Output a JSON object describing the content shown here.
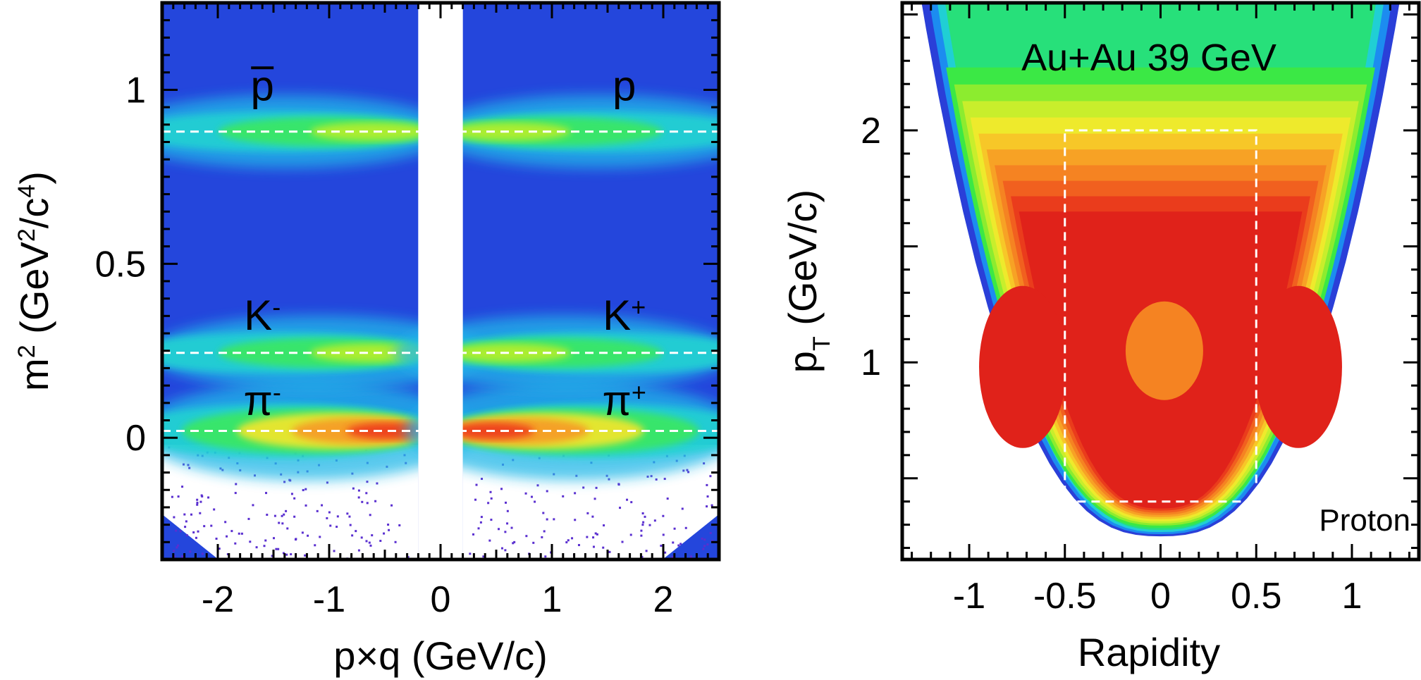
{
  "chart_data": [
    {
      "type": "heatmap",
      "panel": "left",
      "xlabel": "p×q (GeV/c)",
      "ylabel": {
        "main": "m",
        "sup1": "2",
        "mid": " (GeV",
        "sup2": "2",
        "mid2": "/c",
        "sup3": "4",
        "end": ")"
      },
      "xlim": [
        -2.5,
        2.5
      ],
      "ylim": [
        -0.35,
        1.25
      ],
      "x_ticks": [
        {
          "value": -2,
          "label": "-2"
        },
        {
          "value": -1,
          "label": "-1"
        },
        {
          "value": 0,
          "label": "0"
        },
        {
          "value": 1,
          "label": "1"
        },
        {
          "value": 2,
          "label": "2"
        }
      ],
      "y_ticks": [
        {
          "value": 0,
          "label": "0"
        },
        {
          "value": 0.5,
          "label": "0.5"
        },
        {
          "value": 1,
          "label": "1"
        }
      ],
      "reference_lines_m2": [
        0.0195,
        0.244,
        0.88
      ],
      "excluded_band_x": [
        -0.2,
        0.2
      ],
      "species_bands": [
        {
          "name": "pi",
          "m2": 0.0195,
          "peak_x": 0.6,
          "strength": 1.0
        },
        {
          "name": "K",
          "m2": 0.244,
          "peak_x": 0.5,
          "strength": 0.72
        },
        {
          "name": "p",
          "m2": 0.88,
          "peak_x": 0.8,
          "strength": 0.7
        }
      ],
      "annotations": [
        {
          "id": "pbar",
          "base": "p",
          "sup": "",
          "overline": true,
          "x": -1.6,
          "y": 0.97
        },
        {
          "id": "p",
          "base": "p",
          "sup": "",
          "overline": false,
          "x": 1.65,
          "y": 0.97
        },
        {
          "id": "kminus",
          "base": "K",
          "sup": "-",
          "overline": false,
          "x": -1.6,
          "y": 0.31
        },
        {
          "id": "kplus",
          "base": "K",
          "sup": "+",
          "overline": false,
          "x": 1.65,
          "y": 0.31
        },
        {
          "id": "piminus",
          "base": "π",
          "sup": "-",
          "overline": false,
          "x": -1.6,
          "y": 0.065
        },
        {
          "id": "piplus",
          "base": "π",
          "sup": "+",
          "overline": false,
          "x": 1.65,
          "y": 0.065
        }
      ],
      "colormap": [
        "#ffffff",
        "#5a1fd6",
        "#1d3fe0",
        "#1e90f0",
        "#20d2d2",
        "#3be860",
        "#b8ef2a",
        "#f6e62a",
        "#f79a25",
        "#ee3a1d",
        "#c90d0d"
      ]
    },
    {
      "type": "heatmap",
      "panel": "right",
      "title": "Au+Au 39 GeV",
      "species_label": "Proton",
      "xlabel": "Rapidity",
      "ylabel": {
        "main": "p",
        "sub": "T",
        "end": " (GeV/c)"
      },
      "xlim": [
        -1.35,
        1.35
      ],
      "ylim": [
        0.15,
        2.55
      ],
      "x_ticks": [
        {
          "value": -1,
          "label": "-1"
        },
        {
          "value": -0.5,
          "label": "-0.5"
        },
        {
          "value": 0,
          "label": "0"
        },
        {
          "value": 0.5,
          "label": "0.5"
        },
        {
          "value": 1,
          "label": "1"
        }
      ],
      "y_ticks": [
        {
          "value": 1,
          "label": "1"
        },
        {
          "value": 2,
          "label": "2"
        }
      ],
      "acceptance_box": {
        "y_min": -0.5,
        "y_max": 0.5,
        "pt_min": 0.4,
        "pt_max": 2.0
      },
      "contour_levels": [
        "#2a3fd8",
        "#1c8cf0",
        "#20cfd4",
        "#27e07a",
        "#3be845",
        "#8cec2f",
        "#c8ee2c",
        "#eeea2c",
        "#f7c728",
        "#f7a225",
        "#f58322",
        "#f1601f",
        "#ea3c1c",
        "#e0221a"
      ]
    }
  ]
}
